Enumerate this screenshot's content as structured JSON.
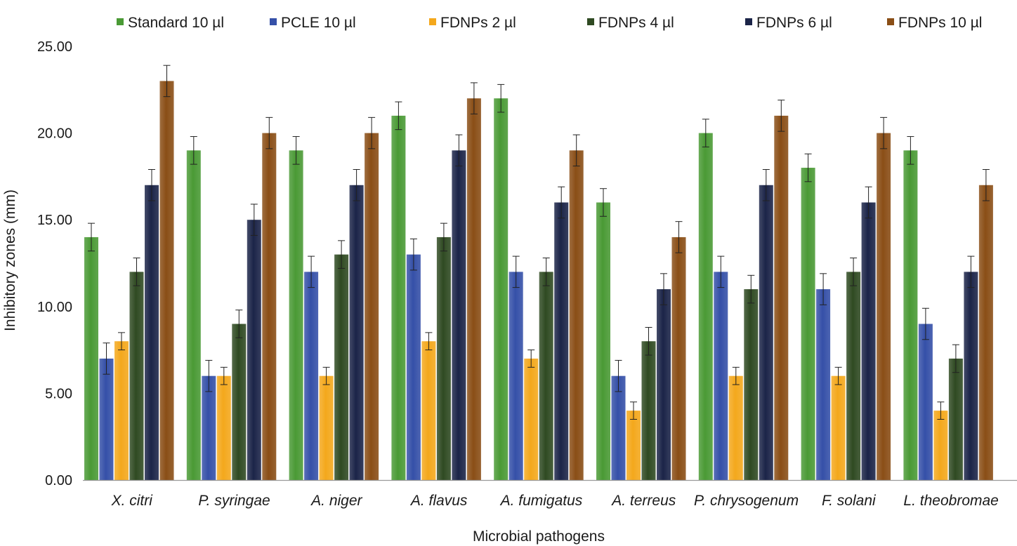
{
  "chart_data": {
    "type": "bar",
    "title": "",
    "xlabel": "Microbial pathogens",
    "ylabel": "Inhibitory zones (mm)",
    "ylim": [
      0,
      25
    ],
    "yticks": [
      "0.00",
      "5.00",
      "10.00",
      "15.00",
      "20.00",
      "25.00"
    ],
    "legend_position": "top",
    "categories": [
      "X. citri",
      "P. syringae",
      "A. niger",
      "A. flavus",
      "A. fumigatus",
      "A. terreus",
      "P. chrysogenum",
      "F. solani",
      "L. theobromae"
    ],
    "series": [
      {
        "name": "Standard 10 µl",
        "color": "#4a9a35",
        "values": [
          14,
          19,
          19,
          21,
          22,
          16,
          20,
          18,
          19
        ],
        "errors": [
          0.8,
          0.8,
          0.8,
          0.8,
          0.8,
          0.8,
          0.8,
          0.8,
          0.8
        ]
      },
      {
        "name": "PCLE 10 µl",
        "color": "#3550a8",
        "values": [
          7,
          6,
          12,
          13,
          12,
          6,
          12,
          11,
          9
        ],
        "errors": [
          0.9,
          0.9,
          0.9,
          0.9,
          0.9,
          0.9,
          0.9,
          0.9,
          0.9
        ]
      },
      {
        "name": "FDNPs 2 µl",
        "color": "#f4a81c",
        "values": [
          8,
          6,
          6,
          8,
          7,
          4,
          6,
          6,
          4
        ],
        "errors": [
          0.5,
          0.5,
          0.5,
          0.5,
          0.5,
          0.5,
          0.5,
          0.5,
          0.5
        ]
      },
      {
        "name": "FDNPs 4 µl",
        "color": "#2f4a22",
        "values": [
          12,
          9,
          13,
          14,
          12,
          8,
          11,
          12,
          7
        ],
        "errors": [
          0.8,
          0.8,
          0.8,
          0.8,
          0.8,
          0.8,
          0.8,
          0.8,
          0.8
        ]
      },
      {
        "name": "FDNPs 6 µl",
        "color": "#1b2448",
        "values": [
          17,
          15,
          17,
          19,
          16,
          11,
          17,
          16,
          12
        ],
        "errors": [
          0.9,
          0.9,
          0.9,
          0.9,
          0.9,
          0.9,
          0.9,
          0.9,
          0.9
        ]
      },
      {
        "name": "FDNPs 10 µl",
        "color": "#8a4e16",
        "values": [
          23,
          20,
          20,
          22,
          19,
          14,
          21,
          20,
          17
        ],
        "errors": [
          0.9,
          0.9,
          0.9,
          0.9,
          0.9,
          0.9,
          0.9,
          0.9,
          0.9
        ]
      }
    ]
  }
}
